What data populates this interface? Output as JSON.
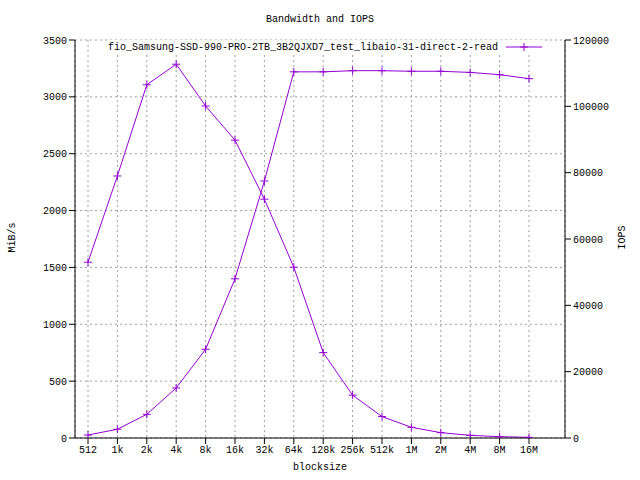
{
  "chart_data": {
    "type": "line",
    "title": "Bandwidth and IOPS",
    "x_label": "blocksize",
    "y_label": "MiB/s",
    "y2_label": "IOPS",
    "categories": [
      "512",
      "1k",
      "2k",
      "4k",
      "8k",
      "16k",
      "32k",
      "64k",
      "128k",
      "256k",
      "512k",
      "1M",
      "2M",
      "4M",
      "8M",
      "16M"
    ],
    "series": [
      {
        "name": "fio_Samsung-SSD-990-PRO-2TB_3B2QJXD7_test_libaio-31-direct-2-read",
        "color": "#9400d3",
        "marker": "plus",
        "values": [
          26,
          77,
          208,
          440,
          780,
          1400,
          2260,
          3220,
          3220,
          3230,
          3230,
          3225,
          3225,
          3215,
          3195,
          3160
        ]
      },
      {
        "color": "#9400d3",
        "marker": "plus",
        "axis": "y2",
        "values": [
          53000,
          79000,
          106500,
          112700,
          100100,
          89800,
          72000,
          51500,
          25760,
          12920,
          6460,
          3225,
          1612,
          804,
          400,
          198
        ]
      }
    ],
    "ylim": [
      0,
      3500
    ],
    "yticks": [
      0,
      500,
      1000,
      1500,
      2000,
      2500,
      3000,
      3500
    ],
    "y2lim": [
      0,
      120000
    ],
    "y2ticks": [
      0,
      20000,
      40000,
      60000,
      80000,
      100000,
      120000
    ],
    "grid": true,
    "legend": "upper right"
  }
}
